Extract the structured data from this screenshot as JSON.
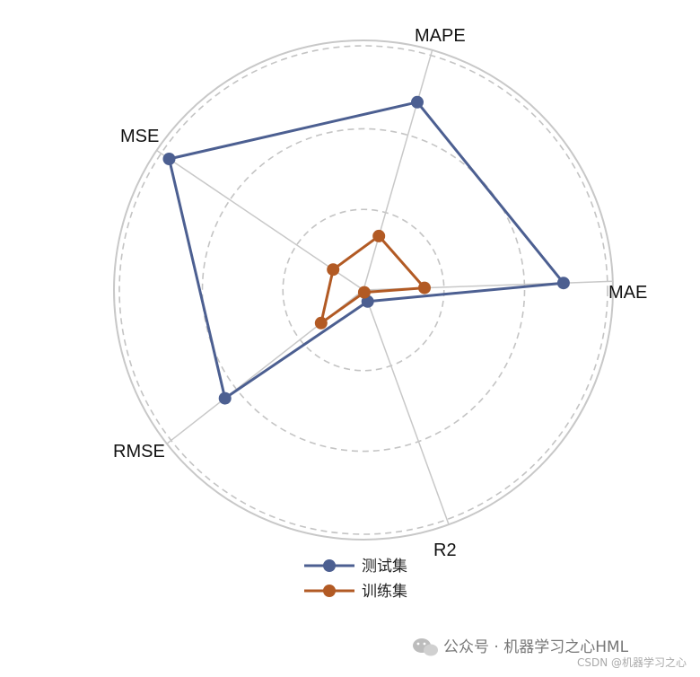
{
  "chart_data": {
    "type": "radar",
    "axes": [
      "MAE",
      "R2",
      "RMSE",
      "MSE",
      "MAPE"
    ],
    "rlim": [
      0,
      1
    ],
    "rings": [
      0.33,
      0.66,
      1.0
    ],
    "series": [
      {
        "name": "测试集",
        "color": "#4c5f91",
        "values": [
          0.82,
          0.05,
          0.72,
          0.96,
          0.8
        ]
      },
      {
        "name": "训练集",
        "color": "#b25a24",
        "values": [
          0.25,
          0.01,
          0.22,
          0.15,
          0.23
        ]
      }
    ],
    "legend_position": "bottom-center",
    "grid": true
  },
  "watermark": {
    "main": "公众号 · 机器学习之心HML",
    "sub": "CSDN @机器学习之心",
    "icon": "wechat-icon"
  }
}
